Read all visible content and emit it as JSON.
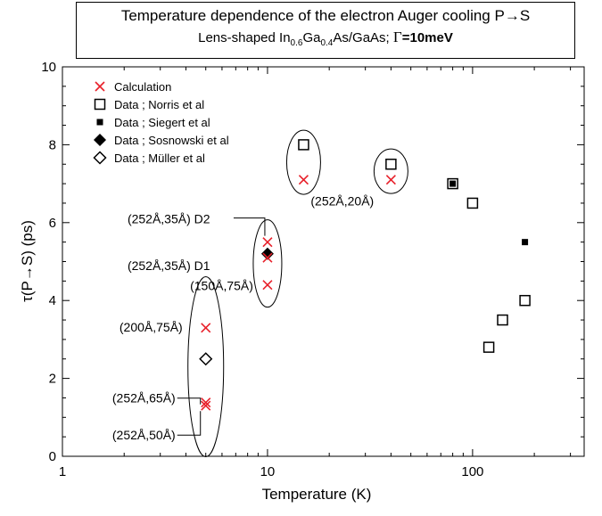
{
  "title": {
    "line1": "Temperature dependence of the electron Auger cooling P→S",
    "line2_pre": "Lens-shaped In",
    "line2_sub1": "0.6",
    "line2_mid": "Ga",
    "line2_sub2": "0.4",
    "line2_post": "As/GaAs; ",
    "gamma_symbol": "Γ",
    "gamma_value": "=10meV"
  },
  "chart_data": {
    "type": "scatter",
    "xlabel": "Temperature (K)",
    "ylabel": "τ(P→S) (ps)",
    "xscale": "log",
    "xlim": [
      1,
      350
    ],
    "ylim": [
      0,
      10
    ],
    "xticks": [
      {
        "value": 1,
        "label": "1"
      },
      {
        "value": 10,
        "label": "10"
      },
      {
        "value": 100,
        "label": "100"
      }
    ],
    "yticks": [
      {
        "value": 0,
        "label": "0"
      },
      {
        "value": 2,
        "label": "2"
      },
      {
        "value": 4,
        "label": "4"
      },
      {
        "value": 6,
        "label": "6"
      },
      {
        "value": 8,
        "label": "8"
      },
      {
        "value": 10,
        "label": "10"
      }
    ],
    "colors": {
      "calculation": "#e8202a",
      "data": "#000000"
    },
    "legend_placement": "top-left",
    "series": [
      {
        "name": "Calculation",
        "marker": "x-cross",
        "color": "#e8202a",
        "points": [
          [
            5,
            1.3
          ],
          [
            5,
            1.38
          ],
          [
            5,
            3.3
          ],
          [
            10,
            4.4
          ],
          [
            10,
            5.1
          ],
          [
            10,
            5.5
          ],
          [
            15,
            7.1
          ],
          [
            40,
            7.1
          ]
        ]
      },
      {
        "name": "Data ; Norris et al",
        "marker": "open-square",
        "color": "#000000",
        "points": [
          [
            15,
            8.0
          ],
          [
            40,
            7.5
          ],
          [
            80,
            7.0
          ],
          [
            100,
            6.5
          ],
          [
            120,
            2.8
          ],
          [
            140,
            3.5
          ],
          [
            180,
            4.0
          ]
        ]
      },
      {
        "name": "Data ; Siegert et al",
        "marker": "filled-square",
        "color": "#000000",
        "points": [
          [
            80,
            7.0
          ],
          [
            180,
            5.5
          ]
        ]
      },
      {
        "name": "Data ; Sosnowski et al",
        "marker": "filled-diamond",
        "color": "#000000",
        "points": [
          [
            10,
            5.2
          ]
        ]
      },
      {
        "name": "Data ; Müller et al",
        "marker": "open-diamond",
        "color": "#000000",
        "points": [
          [
            5,
            2.5
          ]
        ]
      }
    ],
    "annotations": [
      {
        "text": "(252Å,35Å)  D2",
        "x": 10,
        "y": 5.5
      },
      {
        "text": "(252Å,35Å)  D1",
        "x": 10,
        "y": 5.1
      },
      {
        "text": "(150Å,75Å)",
        "x": 10,
        "y": 4.4
      },
      {
        "text": "(200Å,75Å)",
        "x": 5,
        "y": 3.3
      },
      {
        "text": "(252Å,65Å)",
        "x": 5,
        "y": 1.38
      },
      {
        "text": "(252Å,50Å)",
        "x": 5,
        "y": 1.3
      },
      {
        "text": "(252Å,20Å)",
        "x": 40,
        "y": 7.1
      }
    ]
  }
}
